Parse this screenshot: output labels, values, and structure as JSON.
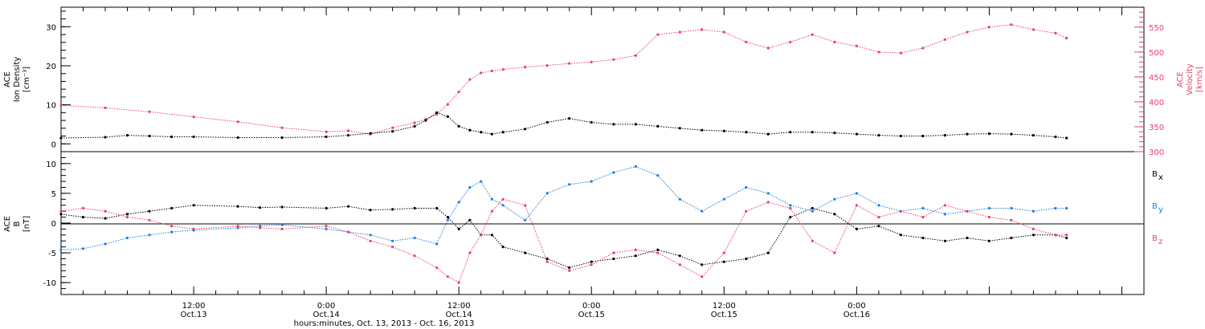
{
  "chart_data": [
    {
      "type": "scatter",
      "panel": "top",
      "ylabel_lines": [
        "ACE",
        "Ion Density",
        "[cm⁻³]"
      ],
      "y2label_lines": [
        "ACE",
        "Velocity",
        "[km/s]"
      ],
      "ylim": [
        -2,
        35
      ],
      "y2lim": [
        300,
        590
      ],
      "y_ticks": [
        0,
        10,
        20,
        30
      ],
      "y2_ticks": [
        300,
        350,
        400,
        450,
        500,
        550
      ],
      "colors": {
        "density": "#000000",
        "velocity": "#e8406a"
      },
      "series": [
        {
          "axis": "left",
          "x": [
            0,
            4,
            6,
            8,
            10,
            12,
            16,
            20,
            24,
            26,
            28,
            30,
            32,
            33,
            34,
            35,
            36,
            37,
            38,
            39,
            40,
            42,
            44,
            46,
            48,
            50,
            52,
            54,
            56,
            58,
            60,
            62,
            64,
            66,
            68,
            70,
            72,
            74,
            76,
            78,
            80,
            82,
            84,
            86,
            88,
            90,
            91
          ],
          "y": [
            1.5,
            1.7,
            2.2,
            2.0,
            1.8,
            1.8,
            1.6,
            1.6,
            1.8,
            2.2,
            2.7,
            3.2,
            4.5,
            6.0,
            8.0,
            7.0,
            4.5,
            3.5,
            3.0,
            2.5,
            3.0,
            3.8,
            5.5,
            6.5,
            5.5,
            5.0,
            5.0,
            4.5,
            4.0,
            3.5,
            3.3,
            3.0,
            2.5,
            3.0,
            3.0,
            2.8,
            2.5,
            2.2,
            2.0,
            2.0,
            2.2,
            2.5,
            2.6,
            2.5,
            2.2,
            1.8,
            1.5
          ]
        },
        {
          "axis": "right",
          "x": [
            0,
            4,
            8,
            12,
            16,
            20,
            24,
            26,
            28,
            30,
            32,
            33,
            34,
            35,
            36,
            37,
            38,
            39,
            40,
            42,
            44,
            46,
            48,
            50,
            52,
            54,
            56,
            58,
            60,
            62,
            64,
            66,
            68,
            70,
            72,
            74,
            76,
            78,
            80,
            82,
            84,
            86,
            88,
            90,
            91
          ],
          "y": [
            393,
            388,
            380,
            370,
            360,
            348,
            340,
            342,
            335,
            348,
            358,
            365,
            375,
            395,
            420,
            445,
            458,
            462,
            465,
            470,
            473,
            477,
            480,
            485,
            493,
            535,
            540,
            545,
            540,
            520,
            508,
            520,
            535,
            520,
            512,
            500,
            498,
            508,
            525,
            540,
            550,
            555,
            545,
            538,
            528
          ]
        }
      ]
    },
    {
      "type": "scatter",
      "panel": "bottom",
      "ylabel_lines": [
        "ACE",
        "B",
        "[nT]"
      ],
      "ylim": [
        -12,
        12
      ],
      "y_ticks": [
        -10,
        -5,
        0,
        5,
        10
      ],
      "zero_line": true,
      "legend": [
        "B",
        "B",
        "B"
      ],
      "legend_subscripts": [
        "x",
        "y",
        "z"
      ],
      "legend_colors": [
        "#000000",
        "#1a7ee6",
        "#e8406a"
      ],
      "series": [
        {
          "x": [
            0,
            2,
            4,
            6,
            8,
            10,
            12,
            16,
            18,
            20,
            24,
            26,
            28,
            30,
            32,
            34,
            35,
            36,
            37,
            38,
            39,
            40,
            42,
            44,
            46,
            48,
            50,
            52,
            54,
            56,
            58,
            60,
            62,
            64,
            66,
            68,
            70,
            72,
            74,
            76,
            78,
            80,
            82,
            84,
            86,
            88,
            90,
            91
          ],
          "y": [
            1.5,
            1.0,
            0.8,
            1.5,
            2.0,
            2.5,
            3.0,
            2.8,
            2.6,
            2.7,
            2.5,
            2.8,
            2.2,
            2.3,
            2.5,
            2.5,
            1.0,
            -1.0,
            0.5,
            -2.0,
            -2.0,
            -4.0,
            -5.0,
            -6.0,
            -7.5,
            -6.5,
            -6.0,
            -5.5,
            -4.5,
            -5.5,
            -7.0,
            -6.5,
            -6.0,
            -5.0,
            1.0,
            2.5,
            1.5,
            -1.0,
            -0.5,
            -2.0,
            -2.5,
            -3.0,
            -2.5,
            -3.0,
            -2.5,
            -2.0,
            -2.0,
            -2.5
          ]
        },
        {
          "x": [
            0,
            2,
            4,
            6,
            8,
            10,
            12,
            16,
            18,
            20,
            24,
            26,
            28,
            30,
            32,
            34,
            35,
            36,
            37,
            38,
            39,
            40,
            42,
            44,
            46,
            48,
            50,
            52,
            54,
            56,
            58,
            60,
            62,
            64,
            66,
            68,
            70,
            72,
            74,
            76,
            78,
            80,
            82,
            84,
            86,
            88,
            90,
            91
          ],
          "y": [
            -4.5,
            -4.3,
            -3.5,
            -2.5,
            -2.0,
            -1.5,
            -1.2,
            -0.8,
            -0.5,
            -0.3,
            -1.0,
            -1.5,
            -2.0,
            -3.0,
            -2.5,
            -3.5,
            0.5,
            3.5,
            6.0,
            7.0,
            4.0,
            3.0,
            0.5,
            5.0,
            6.5,
            7.0,
            8.5,
            9.5,
            8.0,
            4.0,
            2.0,
            4.0,
            6.0,
            5.0,
            3.0,
            2.0,
            4.0,
            5.0,
            3.0,
            2.0,
            2.5,
            1.5,
            2.0,
            2.5,
            2.5,
            2.0,
            2.5,
            2.5
          ]
        },
        {
          "x": [
            0,
            2,
            4,
            6,
            8,
            10,
            12,
            16,
            18,
            20,
            24,
            26,
            28,
            30,
            32,
            34,
            35,
            36,
            37,
            38,
            39,
            40,
            42,
            44,
            46,
            48,
            50,
            52,
            54,
            56,
            58,
            60,
            62,
            64,
            66,
            68,
            70,
            72,
            74,
            76,
            78,
            80,
            82,
            84,
            86,
            88,
            90,
            91
          ],
          "y": [
            2.0,
            2.5,
            2.0,
            1.0,
            0.5,
            -0.5,
            -1.0,
            -0.5,
            -0.8,
            -1.0,
            -0.5,
            -1.5,
            -3.0,
            -4.0,
            -5.5,
            -7.5,
            -9.0,
            -10.0,
            -5.0,
            -2.0,
            2.0,
            4.0,
            3.0,
            -6.5,
            -8.0,
            -7.0,
            -5.0,
            -4.5,
            -5.0,
            -7.0,
            -9.0,
            -5.0,
            2.0,
            3.5,
            2.5,
            -3.0,
            -5.0,
            3.0,
            1.0,
            2.0,
            1.0,
            3.0,
            2.0,
            1.0,
            0.5,
            -1.0,
            -2.0,
            -2.0
          ]
        }
      ]
    }
  ],
  "x_axis": {
    "range_hours": [
      0,
      98
    ],
    "ticks": [
      {
        "x": 12,
        "line1": "12:00",
        "line2": "Oct.13"
      },
      {
        "x": 24,
        "line1": "0:00",
        "line2": "Oct.14"
      },
      {
        "x": 36,
        "line1": "12:00",
        "line2": "Oct.14"
      },
      {
        "x": 48,
        "line1": "0:00",
        "line2": "Oct.15"
      },
      {
        "x": 60,
        "line1": "12:00",
        "line2": "Oct.15"
      },
      {
        "x": 72,
        "line1": "0:00",
        "line2": "Oct.16"
      }
    ],
    "title": "hours:minutes, Oct. 13, 2013 - Oct. 16, 2013"
  }
}
